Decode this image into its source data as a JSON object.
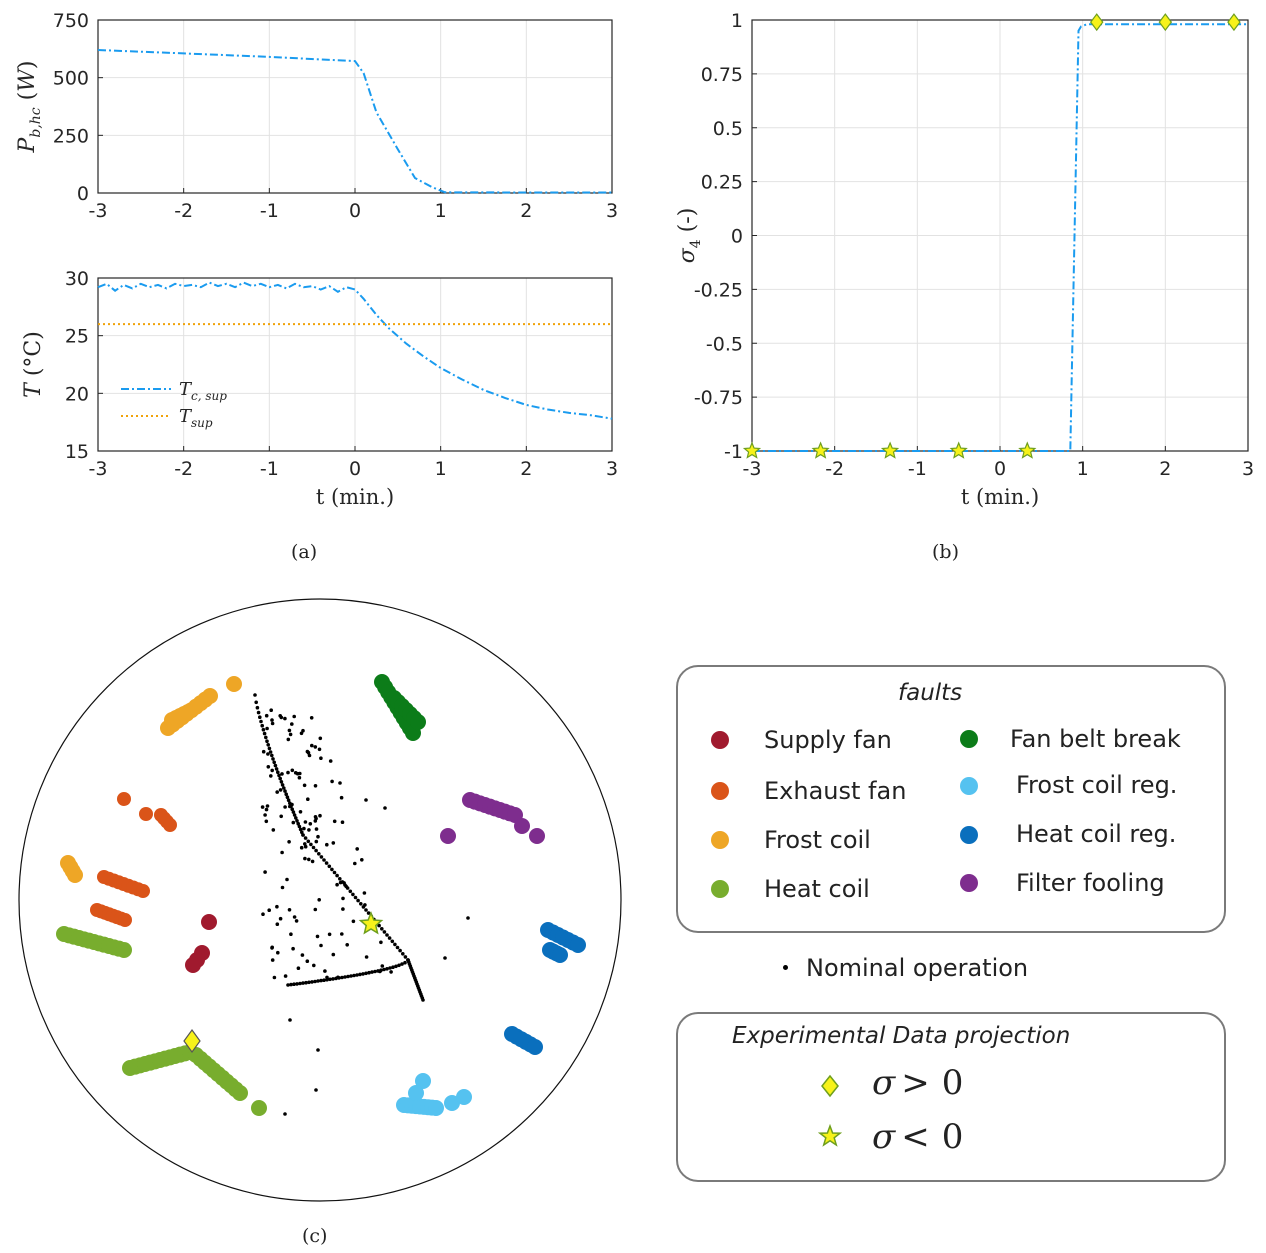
{
  "chart_data": [
    {
      "panel": "top-left",
      "type": "line",
      "ylabel": "P_{b,hc} (W)",
      "xlabel": "",
      "xlim": [
        -3,
        3
      ],
      "ylim": [
        0,
        750
      ],
      "xticks": [
        "-3",
        "-2",
        "-1",
        "0",
        "1",
        "2",
        "3"
      ],
      "yticks": [
        "0",
        "250",
        "500",
        "750"
      ],
      "grid": true,
      "series": [
        {
          "color": "#1a9bef",
          "dash": "dashdot",
          "x": [
            -3,
            -2,
            -1,
            0,
            0.1,
            0.25,
            0.5,
            0.7,
            0.9,
            1.05,
            2,
            3
          ],
          "y": [
            620,
            605,
            590,
            572,
            520,
            350,
            190,
            65,
            25,
            3,
            2,
            2
          ]
        }
      ]
    },
    {
      "panel": "bottom-left",
      "type": "line",
      "ylabel": "T (°C)",
      "xlabel": "t (min.)",
      "xlim": [
        -3,
        3
      ],
      "ylim": [
        15,
        30
      ],
      "xticks": [
        "-3",
        "-2",
        "-1",
        "0",
        "1",
        "2",
        "3"
      ],
      "yticks": [
        "15",
        "20",
        "25",
        "30"
      ],
      "grid": true,
      "legend": "bottom-left",
      "series": [
        {
          "name": "T_{c,sup}",
          "color": "#1a9bef",
          "dash": "dashdot",
          "x": [
            -3,
            -2.9,
            -2.8,
            -2.7,
            -2.6,
            -2.5,
            -2.4,
            -2.3,
            -2.2,
            -2.1,
            -2,
            -1.9,
            -1.8,
            -1.7,
            -1.6,
            -1.5,
            -1.4,
            -1.3,
            -1.2,
            -1.1,
            -1,
            -0.9,
            -0.8,
            -0.7,
            -0.6,
            -0.5,
            -0.4,
            -0.3,
            -0.2,
            -0.1,
            0,
            0.1,
            0.25,
            0.4,
            0.6,
            0.8,
            1.0,
            1.25,
            1.5,
            1.75,
            2.0,
            2.25,
            2.5,
            2.75,
            3.0
          ],
          "y": [
            29.2,
            29.5,
            28.9,
            29.4,
            29.1,
            29.5,
            29.2,
            29.4,
            29.1,
            29.5,
            29.3,
            29.4,
            29.2,
            29.6,
            29.3,
            29.5,
            29.2,
            29.6,
            29.3,
            29.5,
            29.2,
            29.4,
            29.1,
            29.5,
            29.2,
            29.3,
            29.0,
            29.3,
            28.8,
            29.2,
            29.0,
            28.2,
            26.8,
            25.6,
            24.3,
            23.2,
            22.2,
            21.2,
            20.3,
            19.6,
            19.0,
            18.6,
            18.3,
            18.1,
            17.8
          ]
        },
        {
          "name": "T_{sup}",
          "color": "#f0a30a",
          "dash": "dotted",
          "x": [
            -3,
            3
          ],
          "y": [
            26,
            26
          ]
        }
      ]
    },
    {
      "panel": "right",
      "type": "line",
      "ylabel": "σ_4 (-)",
      "xlabel": "t (min.)",
      "xlim": [
        -3,
        3
      ],
      "ylim": [
        -1,
        1
      ],
      "xticks": [
        "-3",
        "-2",
        "-1",
        "0",
        "1",
        "2",
        "3"
      ],
      "yticks": [
        "-1",
        "-0.75",
        "-0.5",
        "-0.25",
        "0",
        "0.25",
        "0.5",
        "0.75",
        "1"
      ],
      "grid": true,
      "series": [
        {
          "color": "#1a9bef",
          "dash": "dashdot",
          "x": [
            -3,
            0.85,
            0.95,
            0.98,
            1.05,
            1.2,
            3
          ],
          "y": [
            -1,
            -1,
            0.95,
            0.97,
            0.98,
            0.98,
            0.98
          ]
        }
      ],
      "markers_star": {
        "x": [
          -3,
          -2.17,
          -1.33,
          -0.5,
          0.33
        ],
        "y": [
          -1,
          -1,
          -1,
          -1,
          -1
        ]
      },
      "markers_diamond": {
        "x": [
          1.17,
          2.0,
          2.83
        ],
        "y": [
          0.99,
          0.99,
          0.99
        ]
      }
    },
    {
      "panel": "bottom",
      "type": "scatter",
      "legend_title": "faults",
      "faults": [
        {
          "name": "Supply fan",
          "color": "#a01a2e"
        },
        {
          "name": "Exhaust fan",
          "color": "#da5419"
        },
        {
          "name": "Frost coil",
          "color": "#eea626"
        },
        {
          "name": "Heat coil",
          "color": "#78ad2e"
        },
        {
          "name": "Fan belt break",
          "color": "#0c7c19"
        },
        {
          "name": "Frost coil reg.",
          "color": "#55c2f0"
        },
        {
          "name": "Heat coil reg.",
          "color": "#0a6fbd"
        },
        {
          "name": "Filter fooling",
          "color": "#7e2d8e"
        }
      ],
      "nominal_label": "Nominal operation",
      "projection_title": "Experimental Data projection",
      "projection": [
        {
          "symbol": "σ",
          "op": ">",
          "value": "0",
          "marker": "diamond"
        },
        {
          "symbol": "σ",
          "op": "<",
          "value": "0",
          "marker": "star"
        }
      ]
    }
  ],
  "captions": {
    "a": "(a)",
    "b": "(b)",
    "c": "(c)"
  },
  "colors": {
    "blue": "#1a9bef",
    "orange": "#f0a30a",
    "marker_fill": "#f7f21a",
    "marker_edge": "#6f9f1e"
  }
}
